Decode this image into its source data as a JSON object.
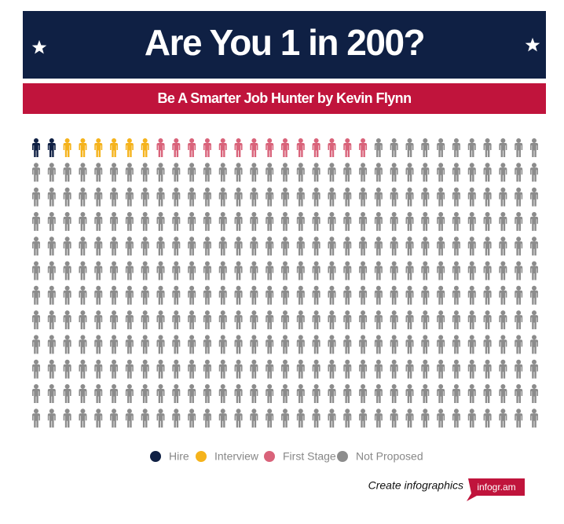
{
  "chart_data": {
    "type": "pictograph",
    "title": "Are You 1 in 200?",
    "subtitle": "Be A Smarter Job Hunter by Kevin Flynn",
    "columns": 33,
    "series": [
      {
        "name": "Hire",
        "color": "#0f2044",
        "values": [
          2
        ]
      },
      {
        "name": "Interview",
        "color": "#f5b31c",
        "values": [
          6
        ]
      },
      {
        "name": "First Stage",
        "color": "#d9637a",
        "values": [
          14
        ]
      },
      {
        "name": "Not Proposed",
        "color": "#8c8c8c",
        "values": [
          374
        ]
      }
    ]
  },
  "footer": {
    "text": "Create infographics",
    "brand": "infogr.am"
  }
}
